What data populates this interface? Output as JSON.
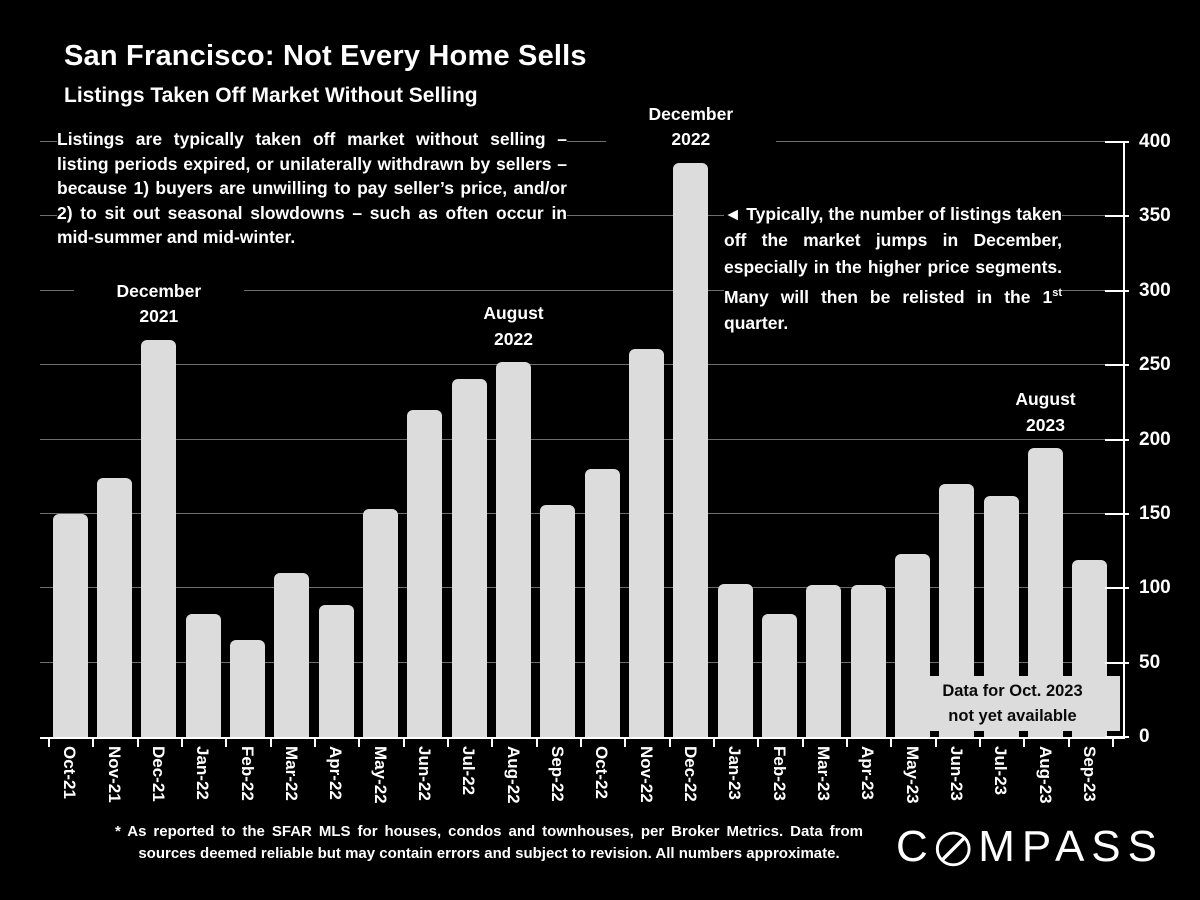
{
  "title": "San Francisco: Not Every Home Sells",
  "subtitle": "Listings Taken Off Market Without Selling",
  "intro_paragraph": "Listings are typically taken off market without selling – listing periods expired, or unilaterally withdrawn by sellers – because 1) buyers are unwilling to pay seller’s price, and/or 2) to sit out seasonal slowdowns – such as often occur in mid-summer and mid-winter.",
  "side_annotation": {
    "arrow": "◄",
    "text_before_sup": " Typically, the number of listings taken off the market jumps in December, especially in the higher price segments. Many will then be relisted in the 1",
    "sup": "st",
    "text_after_sup": " quarter."
  },
  "chart_data": {
    "type": "bar",
    "title": "Listings Taken Off Market Without Selling",
    "xlabel": "",
    "ylabel": "",
    "ylim": [
      0,
      400
    ],
    "yticks": [
      0,
      50,
      100,
      150,
      200,
      250,
      300,
      350,
      400
    ],
    "grid": "horizontal",
    "axis_side": "right",
    "bar_color": "#dcdcdc",
    "gridline_color": "#6e6e6e",
    "background_color": "#000000",
    "categories": [
      "Oct-21",
      "Nov-21",
      "Dec-21",
      "Jan-22",
      "Feb-22",
      "Mar-22",
      "Apr-22",
      "May-22",
      "Jun-22",
      "Jul-22",
      "Aug-22",
      "Sep-22",
      "Oct-22",
      "Nov-22",
      "Dec-22",
      "Jan-23",
      "Feb-23",
      "Mar-23",
      "Apr-23",
      "May-23",
      "Jun-23",
      "Jul-23",
      "Aug-23",
      "Sep-23"
    ],
    "values": [
      150,
      174,
      267,
      83,
      65,
      110,
      89,
      153,
      220,
      241,
      252,
      156,
      180,
      261,
      386,
      103,
      83,
      102,
      102,
      123,
      170,
      162,
      194,
      119
    ],
    "peak_labels": [
      {
        "line1": "December",
        "line2": "2021",
        "bar_index": 2
      },
      {
        "line1": "August",
        "line2": "2022",
        "bar_index": 10
      },
      {
        "line1": "December",
        "line2": "2022",
        "bar_index": 14
      },
      {
        "line1": "August",
        "line2": "2023",
        "bar_index": 22
      }
    ],
    "data_note_line1": "Data for Oct. 2023",
    "data_note_line2": "not yet available"
  },
  "footnote": "* As reported to the SFAR MLS for houses, condos and townhouses, per Broker Metrics. Data from sources deemed reliable but may contain errors and subject to revision. All numbers approximate.",
  "logo": {
    "prefix": "C",
    "suffix": "MPASS",
    "o_icon": "compass-slashed-o-icon"
  }
}
